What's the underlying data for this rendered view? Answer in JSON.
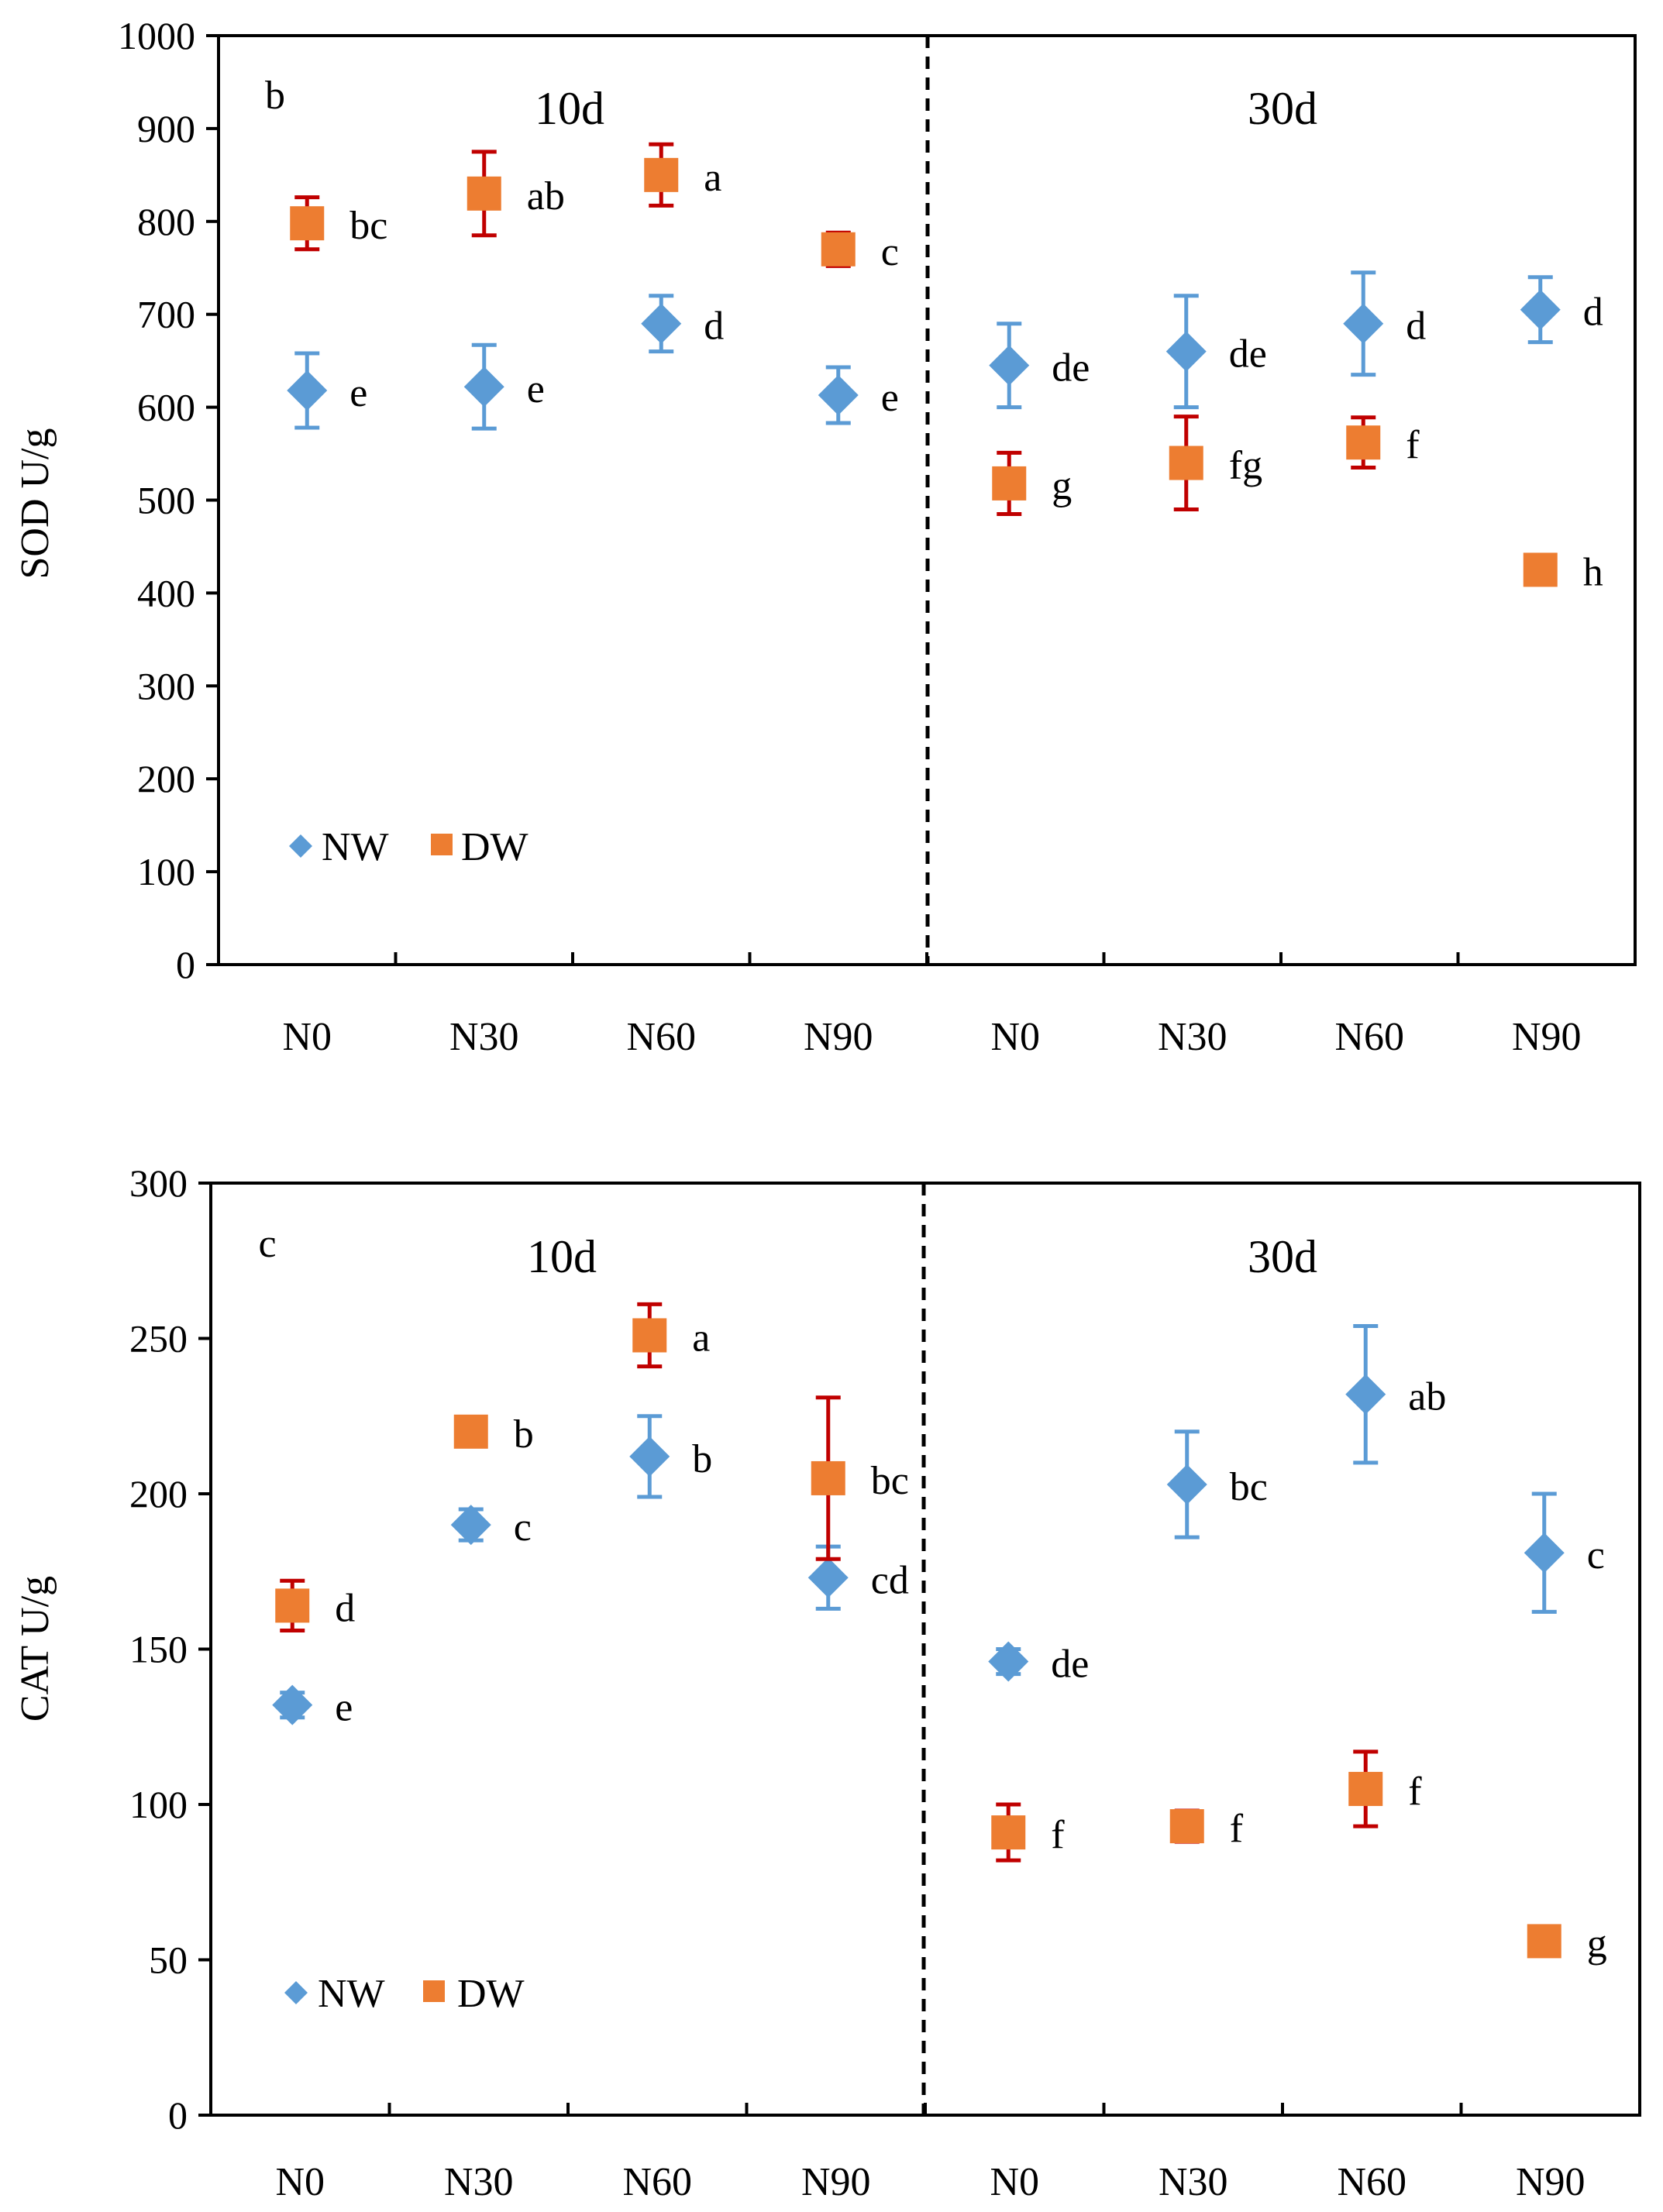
{
  "colors": {
    "NW": "#5b9bd5",
    "DW": "#ed7d31",
    "NW_err": "#5b9bd5",
    "DW_err": "#c00000",
    "axis": "#000000"
  },
  "chart_data": [
    {
      "type": "scatter",
      "panel_label": "b",
      "ylabel": "SOD  U/g",
      "ylim": [
        0,
        1000
      ],
      "yticks": [
        "0",
        "100",
        "200",
        "300",
        "400",
        "500",
        "600",
        "700",
        "800",
        "900",
        "1000"
      ],
      "categories": [
        "N0",
        "N30",
        "N60",
        "N90",
        "N0",
        "N30",
        "N60",
        "N90"
      ],
      "groups": [
        "10d",
        "30d"
      ],
      "legend": [
        "NW",
        "DW"
      ],
      "series": [
        {
          "name": "NW",
          "values": [
            618,
            622,
            690,
            613,
            645,
            660,
            690,
            705
          ],
          "errors": [
            40,
            45,
            30,
            30,
            45,
            60,
            55,
            35
          ],
          "letters": [
            "e",
            "e",
            "d",
            "e",
            "de",
            "de",
            "d",
            "d"
          ]
        },
        {
          "name": "DW",
          "values": [
            798,
            830,
            850,
            770,
            518,
            540,
            562,
            425
          ],
          "errors": [
            28,
            45,
            33,
            18,
            33,
            50,
            27,
            8
          ],
          "letters": [
            "bc",
            "ab",
            "a",
            "c",
            "g",
            "fg",
            "f",
            "h"
          ]
        }
      ]
    },
    {
      "type": "scatter",
      "panel_label": "c",
      "ylabel": "CAT  U/g",
      "ylim": [
        0,
        300
      ],
      "yticks": [
        "0",
        "50",
        "100",
        "150",
        "200",
        "250",
        "300"
      ],
      "categories": [
        "N0",
        "N30",
        "N60",
        "N90",
        "N0",
        "N30",
        "N60",
        "N90"
      ],
      "groups": [
        "10d",
        "30d"
      ],
      "legend": [
        "NW",
        "DW"
      ],
      "series": [
        {
          "name": "NW",
          "values": [
            132,
            190,
            212,
            173,
            146,
            203,
            232,
            181
          ],
          "errors": [
            4,
            5,
            13,
            10,
            4,
            17,
            22,
            19
          ],
          "letters": [
            "e",
            "c",
            "b",
            "cd",
            "de",
            "bc",
            "ab",
            "c"
          ]
        },
        {
          "name": "DW",
          "values": [
            164,
            220,
            251,
            205,
            91,
            93,
            105,
            56
          ],
          "errors": [
            8,
            4,
            10,
            26,
            9,
            5,
            12,
            1
          ],
          "letters": [
            "d",
            "b",
            "a",
            "bc",
            "f",
            "f",
            "f",
            "g"
          ]
        }
      ]
    }
  ]
}
